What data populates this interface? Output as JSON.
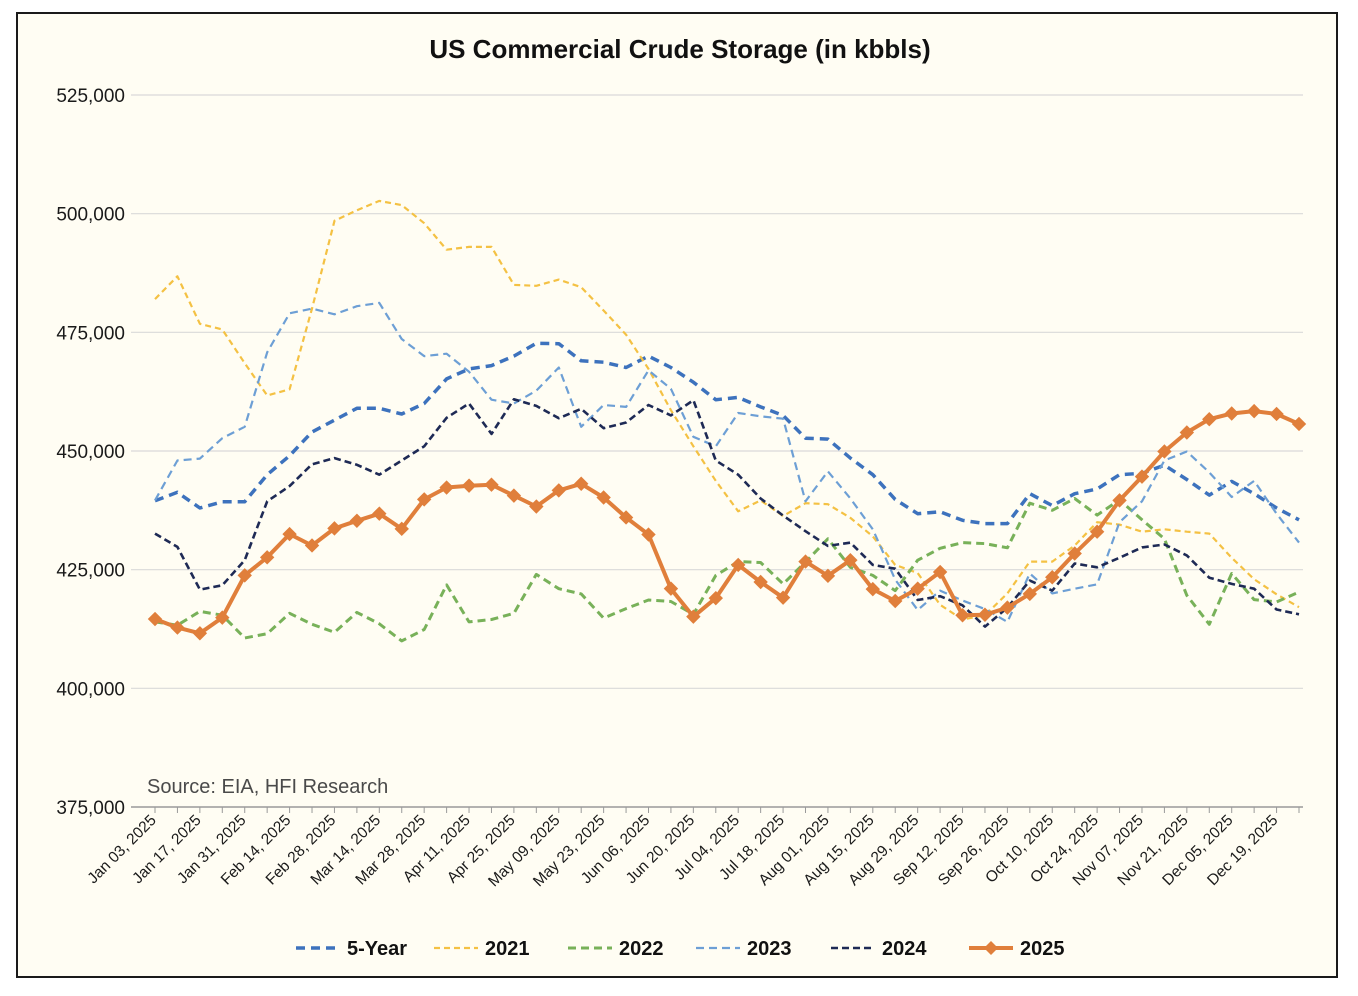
{
  "chart_data": {
    "type": "line",
    "title": "US Commercial Crude Storage (in kbbls)",
    "source": "Source: EIA, HFI Research",
    "xlabel": "",
    "ylabel": "",
    "ylim": [
      375000,
      525000
    ],
    "y_ticks": [
      375000,
      400000,
      425000,
      450000,
      475000,
      500000,
      525000
    ],
    "y_tick_labels": [
      "375,000",
      "400,000",
      "425,000",
      "450,000",
      "475,000",
      "500,000",
      "525,000"
    ],
    "grid": "horizontal",
    "legend_position": "bottom",
    "x_tick_labels": [
      "Jan 03, 2025",
      "Jan 17, 2025",
      "Jan 31, 2025",
      "Feb 14, 2025",
      "Feb 28, 2025",
      "Mar 14, 2025",
      "Mar 28, 2025",
      "Apr 11, 2025",
      "Apr 25, 2025",
      "May 09, 2025",
      "May 23, 2025",
      "Jun 06, 2025",
      "Jun 20, 2025",
      "Jul 04, 2025",
      "Jul 18, 2025",
      "Aug 01, 2025",
      "Aug 15, 2025",
      "Aug 29, 2025",
      "Sep 12, 2025",
      "Sep 26, 2025",
      "Oct 10, 2025",
      "Oct 24, 2025",
      "Nov 07, 2025",
      "Nov 21, 2025",
      "Dec 05, 2025",
      "Dec 19, 2025"
    ],
    "x": [
      "Jan 03, 2025",
      "Jan 10, 2025",
      "Jan 17, 2025",
      "Jan 24, 2025",
      "Jan 31, 2025",
      "Feb 07, 2025",
      "Feb 14, 2025",
      "Feb 21, 2025",
      "Feb 28, 2025",
      "Mar 07, 2025",
      "Mar 14, 2025",
      "Mar 21, 2025",
      "Mar 28, 2025",
      "Apr 04, 2025",
      "Apr 11, 2025",
      "Apr 18, 2025",
      "Apr 25, 2025",
      "May 02, 2025",
      "May 09, 2025",
      "May 16, 2025",
      "May 23, 2025",
      "May 30, 2025",
      "Jun 06, 2025",
      "Jun 13, 2025",
      "Jun 20, 2025",
      "Jun 27, 2025",
      "Jul 04, 2025",
      "Jul 11, 2025",
      "Jul 18, 2025",
      "Jul 25, 2025",
      "Aug 01, 2025",
      "Aug 08, 2025",
      "Aug 15, 2025",
      "Aug 22, 2025",
      "Aug 29, 2025",
      "Sep 05, 2025",
      "Sep 12, 2025",
      "Sep 19, 2025",
      "Sep 26, 2025",
      "Oct 03, 2025",
      "Oct 10, 2025",
      "Oct 17, 2025",
      "Oct 24, 2025",
      "Oct 31, 2025",
      "Nov 07, 2025",
      "Nov 14, 2025",
      "Nov 21, 2025",
      "Nov 28, 2025",
      "Dec 05, 2025",
      "Dec 12, 2025",
      "Dec 19, 2025",
      "Dec 26, 2025"
    ],
    "series": [
      {
        "name": "5-Year",
        "color": "#3d72bd",
        "dash": "9,6",
        "width": 3.5,
        "marker": "none",
        "values": [
          439500,
          441300,
          438000,
          439300,
          439300,
          445000,
          449000,
          454000,
          456500,
          459000,
          459000,
          457800,
          460000,
          465200,
          467300,
          468000,
          470000,
          472700,
          472600,
          469000,
          468700,
          467600,
          470000,
          467600,
          464500,
          460800,
          461300,
          459300,
          457500,
          452700,
          452500,
          448500,
          445000,
          439800,
          436800,
          437200,
          435400,
          434700,
          434700,
          441000,
          438500,
          441000,
          442000,
          445000,
          445300,
          447000,
          444000,
          440700,
          443600,
          441000,
          438000,
          435500
        ]
      },
      {
        "name": "2021",
        "color": "#f4c143",
        "dash": "6,4",
        "width": 2.2,
        "marker": "none",
        "values": [
          482000,
          486800,
          476800,
          475600,
          468500,
          461700,
          463000,
          480000,
          498500,
          500700,
          502700,
          501800,
          498000,
          492400,
          493000,
          493000,
          485000,
          484800,
          486100,
          484500,
          479600,
          474500,
          467300,
          458600,
          451000,
          443700,
          437300,
          439600,
          436300,
          439000,
          438800,
          435900,
          432000,
          426000,
          424300,
          417600,
          414500,
          415400,
          420000,
          426700,
          426700,
          430100,
          435000,
          434500,
          433000,
          433500,
          433000,
          432600,
          427500,
          423000,
          419800,
          417100
        ]
      },
      {
        "name": "2022",
        "color": "#78b159",
        "dash": "8,5",
        "width": 3.0,
        "marker": "none",
        "values": [
          414000,
          413300,
          416200,
          415400,
          410600,
          411500,
          415800,
          413500,
          411800,
          416000,
          413600,
          410000,
          412400,
          421800,
          414000,
          414500,
          415800,
          424000,
          421000,
          419900,
          414800,
          416800,
          418600,
          418300,
          415600,
          423800,
          426700,
          426500,
          422000,
          426600,
          431500,
          425500,
          423800,
          420600,
          427000,
          429500,
          430700,
          430500,
          429600,
          439000,
          437500,
          440000,
          436500,
          439700,
          435500,
          431500,
          419600,
          413500,
          424200,
          418700,
          418200,
          420300
        ]
      },
      {
        "name": "2023",
        "color": "#6d9fd5",
        "dash": "8,5",
        "width": 2.2,
        "marker": "none",
        "values": [
          439600,
          448000,
          448400,
          452700,
          455100,
          470800,
          479000,
          480000,
          478800,
          480500,
          481200,
          473600,
          470000,
          470500,
          466700,
          460800,
          460000,
          462700,
          467600,
          455100,
          459700,
          459300,
          467000,
          463100,
          453000,
          451000,
          458000,
          457300,
          456800,
          439400,
          445700,
          440000,
          433500,
          422900,
          416500,
          420600,
          418500,
          416700,
          414000,
          424200,
          420000,
          421000,
          421900,
          435000,
          439400,
          448000,
          449900,
          445500,
          440300,
          443700,
          436800,
          430700
        ]
      },
      {
        "name": "2024",
        "color": "#1e2a55",
        "dash": "7,4",
        "width": 2.6,
        "marker": "none",
        "values": [
          432600,
          429800,
          420800,
          421700,
          427000,
          439400,
          442600,
          447200,
          448500,
          447100,
          445000,
          448000,
          451000,
          457000,
          460000,
          453600,
          460900,
          459500,
          456900,
          458900,
          454800,
          456000,
          459700,
          457500,
          460700,
          448000,
          445000,
          440000,
          436400,
          433100,
          430000,
          430700,
          426000,
          425200,
          418600,
          419400,
          417500,
          413000,
          417000,
          422700,
          420600,
          426300,
          425500,
          427500,
          429700,
          430300,
          428000,
          423300,
          422000,
          421000,
          416600,
          415600
        ]
      },
      {
        "name": "2025",
        "color": "#e07f3b",
        "dash": "",
        "width": 4.0,
        "marker": "diamond",
        "values": [
          414600,
          412800,
          411600,
          414900,
          423800,
          427600,
          432500,
          430100,
          433700,
          435300,
          436800,
          433600,
          439800,
          442300,
          442700,
          442900,
          440600,
          438300,
          441700,
          443100,
          440200,
          436000,
          432400,
          421000,
          415100,
          419000,
          426000,
          422400,
          419100,
          426700,
          423700,
          427000,
          420900,
          418400,
          421000,
          424500,
          415400,
          415500,
          417000,
          419900,
          423400,
          428400,
          433000,
          439600,
          444600,
          449900,
          453900,
          456700,
          457900,
          458400,
          457800,
          455700
        ]
      }
    ]
  }
}
